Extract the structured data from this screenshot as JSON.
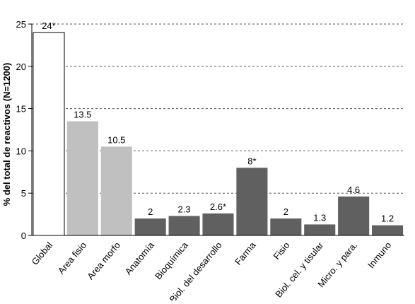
{
  "chart_data": {
    "type": "bar",
    "y_label": "% del total de reactivos (N=1200)",
    "categories": [
      "Global",
      "Area fisio",
      "Area morfo",
      "Anatomía",
      "Bioquímica",
      "Biol. del desarrollo",
      "Farma",
      "Fisio",
      "Biol. cel. y tisular",
      "Micro. y para.",
      "Inmuno"
    ],
    "values": [
      24,
      13.5,
      10.5,
      2,
      2.3,
      2.6,
      8,
      2,
      1.3,
      4.6,
      1.2
    ],
    "value_labels": [
      "24*",
      "13.5",
      "10.5",
      "2",
      "2.3",
      "2.6*",
      "8*",
      "2",
      "1.3",
      "4.6",
      "1.2"
    ],
    "colors": [
      "#ffffff",
      "#c0c0c0",
      "#c0c0c0",
      "#606060",
      "#606060",
      "#606060",
      "#606060",
      "#606060",
      "#606060",
      "#606060",
      "#606060"
    ],
    "ylim": [
      0,
      25
    ],
    "yticks": [
      0,
      5,
      10,
      15,
      20,
      25
    ],
    "grid": true
  }
}
